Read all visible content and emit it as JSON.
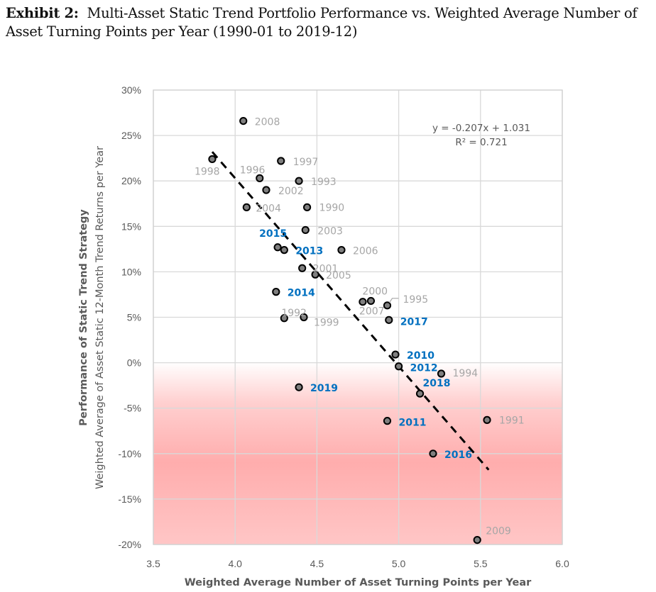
{
  "figure": {
    "title_bold": "Exhibit 2:",
    "title_rest": "Multi-Asset Static Trend Portfolio Performance vs. Weighted Average Number of Asset Turning Points per Year (1990-01 to 2019-12)"
  },
  "chart_data": {
    "type": "scatter",
    "title": "Exhibit 2: Multi-Asset Static Trend Portfolio Performance vs. Weighted Average Number of Asset Turning Points per Year (1990-01 to 2019-12)",
    "xlabel": "Weighted Average Number of Asset Turning Points per Year",
    "ylabel_line1": "Performance of Static Trend Strategy",
    "ylabel_line2": "Weighted Average of Asset Static 12-Month Trend Returns per Year",
    "xlim": [
      3.5,
      6.0
    ],
    "ylim": [
      -0.2,
      0.3
    ],
    "x_ticks": [
      3.5,
      4.0,
      4.5,
      5.0,
      5.5,
      6.0
    ],
    "x_tick_labels": [
      "3.5",
      "4.0",
      "4.5",
      "5.0",
      "5.5",
      "6.0"
    ],
    "y_ticks": [
      0.3,
      0.25,
      0.2,
      0.15,
      0.1,
      0.05,
      0.0,
      -0.05,
      -0.1,
      -0.15,
      -0.2
    ],
    "y_tick_labels": [
      "30%",
      "25%",
      "20%",
      "15%",
      "10%",
      "5%",
      "0%",
      "-5%",
      "-10%",
      "-15%",
      "-20%"
    ],
    "grid": true,
    "negative_region_shading": {
      "from": 0.0,
      "to": -0.2,
      "color": "#ffadad"
    },
    "colors": {
      "point_fill": "#7f7f7f",
      "point_stroke": "#000000",
      "label_pre_2010": "#a6a6a6",
      "label_2010_on": "#0070c0",
      "trendline": "#000000"
    },
    "trendline": {
      "type": "linear",
      "slope": -0.207,
      "intercept": 1.031,
      "x_range": [
        3.86,
        5.55
      ],
      "equation_label": "y = -0.207x + 1.031",
      "r2_label": "R² = 0.721",
      "style": "dashed"
    },
    "points": [
      {
        "label": "1990",
        "x": 4.44,
        "y": 0.171
      },
      {
        "label": "1991",
        "x": 5.54,
        "y": -0.063
      },
      {
        "label": "1992",
        "x": 4.3,
        "y": 0.049
      },
      {
        "label": "1993",
        "x": 4.39,
        "y": 0.2
      },
      {
        "label": "1994",
        "x": 5.26,
        "y": -0.012
      },
      {
        "label": "1995",
        "x": 4.93,
        "y": 0.063
      },
      {
        "label": "1996",
        "x": 4.15,
        "y": 0.203
      },
      {
        "label": "1997",
        "x": 4.28,
        "y": 0.222
      },
      {
        "label": "1998",
        "x": 3.86,
        "y": 0.224
      },
      {
        "label": "1999",
        "x": 4.42,
        "y": 0.05
      },
      {
        "label": "2000",
        "x": 4.83,
        "y": 0.068
      },
      {
        "label": "2001",
        "x": 4.41,
        "y": 0.104
      },
      {
        "label": "2002",
        "x": 4.19,
        "y": 0.19
      },
      {
        "label": "2003",
        "x": 4.43,
        "y": 0.146
      },
      {
        "label": "2004",
        "x": 4.07,
        "y": 0.171
      },
      {
        "label": "2005",
        "x": 4.49,
        "y": 0.097
      },
      {
        "label": "2006",
        "x": 4.65,
        "y": 0.124
      },
      {
        "label": "2007",
        "x": 4.78,
        "y": 0.067
      },
      {
        "label": "2008",
        "x": 4.05,
        "y": 0.266
      },
      {
        "label": "2009",
        "x": 5.48,
        "y": -0.195
      },
      {
        "label": "2010",
        "x": 4.98,
        "y": 0.009
      },
      {
        "label": "2011",
        "x": 4.93,
        "y": -0.064
      },
      {
        "label": "2012",
        "x": 5.0,
        "y": -0.004
      },
      {
        "label": "2013",
        "x": 4.3,
        "y": 0.124
      },
      {
        "label": "2014",
        "x": 4.25,
        "y": 0.078
      },
      {
        "label": "2015",
        "x": 4.26,
        "y": 0.127
      },
      {
        "label": "2016",
        "x": 5.21,
        "y": -0.1
      },
      {
        "label": "2017",
        "x": 4.94,
        "y": 0.047
      },
      {
        "label": "2018",
        "x": 5.13,
        "y": -0.034
      },
      {
        "label": "2019",
        "x": 4.39,
        "y": -0.027
      }
    ]
  }
}
